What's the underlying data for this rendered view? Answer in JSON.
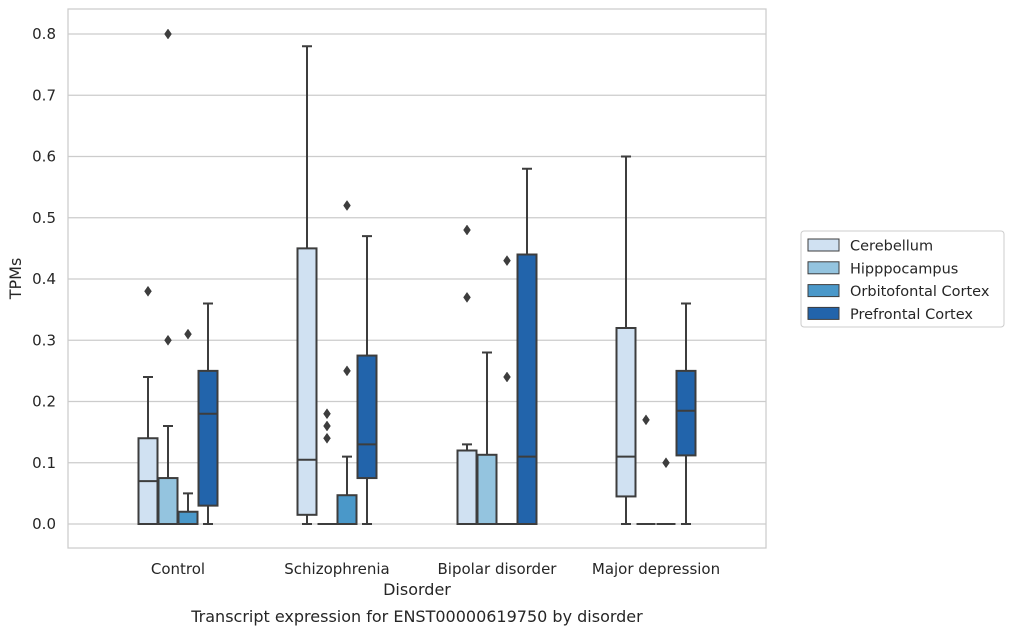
{
  "chart_data": {
    "type": "box",
    "xlabel": "Disorder",
    "ylabel": "TPMs",
    "caption": "Transcript expression for ENST00000619750 by disorder",
    "ylim": [
      -0.04,
      0.84
    ],
    "yticks": [
      "0.0",
      "0.1",
      "0.2",
      "0.3",
      "0.4",
      "0.5",
      "0.6",
      "0.7",
      "0.8"
    ],
    "grid": "horizontal",
    "legend_position": "right",
    "categories": [
      "Control",
      "Schizophrenia",
      "Bipolar disorder",
      "Major depression"
    ],
    "series": [
      {
        "name": "Cerebellum",
        "color": "#d0e1f2",
        "boxes": [
          {
            "whislo": 0.0,
            "q1": 0.0,
            "med": 0.07,
            "q3": 0.14,
            "whishi": 0.24,
            "fliers": [
              0.38
            ]
          },
          {
            "whislo": 0.0,
            "q1": 0.015,
            "med": 0.105,
            "q3": 0.45,
            "whishi": 0.78,
            "fliers": []
          },
          {
            "whislo": 0.0,
            "q1": 0.0,
            "med": 0.0,
            "q3": 0.12,
            "whishi": 0.13,
            "fliers": [
              0.37,
              0.48
            ]
          },
          {
            "whislo": 0.0,
            "q1": 0.045,
            "med": 0.11,
            "q3": 0.32,
            "whishi": 0.6,
            "fliers": []
          }
        ]
      },
      {
        "name": "Hipppocampus",
        "color": "#94c4df",
        "boxes": [
          {
            "whislo": 0.0,
            "q1": 0.0,
            "med": 0.0,
            "q3": 0.075,
            "whishi": 0.16,
            "fliers": [
              0.3,
              0.8
            ]
          },
          {
            "whislo": 0.0,
            "q1": 0.0,
            "med": 0.0,
            "q3": 0.0,
            "whishi": 0.0,
            "fliers": [
              0.14,
              0.16,
              0.18
            ]
          },
          {
            "whislo": 0.0,
            "q1": 0.0,
            "med": 0.0,
            "q3": 0.113,
            "whishi": 0.28,
            "fliers": []
          },
          {
            "whislo": 0.0,
            "q1": 0.0,
            "med": 0.0,
            "q3": 0.0,
            "whishi": 0.0,
            "fliers": [
              0.17
            ]
          }
        ]
      },
      {
        "name": "Orbitofontal Cortex",
        "color": "#4a98c9",
        "boxes": [
          {
            "whislo": 0.0,
            "q1": 0.0,
            "med": 0.0,
            "q3": 0.02,
            "whishi": 0.05,
            "fliers": [
              0.31
            ]
          },
          {
            "whislo": 0.0,
            "q1": 0.0,
            "med": 0.0,
            "q3": 0.047,
            "whishi": 0.11,
            "fliers": [
              0.25,
              0.52
            ]
          },
          {
            "whislo": 0.0,
            "q1": 0.0,
            "med": 0.0,
            "q3": 0.0,
            "whishi": 0.0,
            "fliers": [
              0.24,
              0.43
            ]
          },
          {
            "whislo": 0.0,
            "q1": 0.0,
            "med": 0.0,
            "q3": 0.0,
            "whishi": 0.0,
            "fliers": [
              0.1
            ]
          }
        ]
      },
      {
        "name": "Prefrontal Cortex",
        "color": "#2264ab",
        "boxes": [
          {
            "whislo": 0.0,
            "q1": 0.03,
            "med": 0.18,
            "q3": 0.25,
            "whishi": 0.36,
            "fliers": []
          },
          {
            "whislo": 0.0,
            "q1": 0.075,
            "med": 0.13,
            "q3": 0.275,
            "whishi": 0.47,
            "fliers": []
          },
          {
            "whislo": 0.0,
            "q1": 0.0,
            "med": 0.11,
            "q3": 0.44,
            "whishi": 0.58,
            "fliers": []
          },
          {
            "whislo": 0.0,
            "q1": 0.112,
            "med": 0.185,
            "q3": 0.25,
            "whishi": 0.36,
            "fliers": []
          }
        ]
      }
    ]
  }
}
